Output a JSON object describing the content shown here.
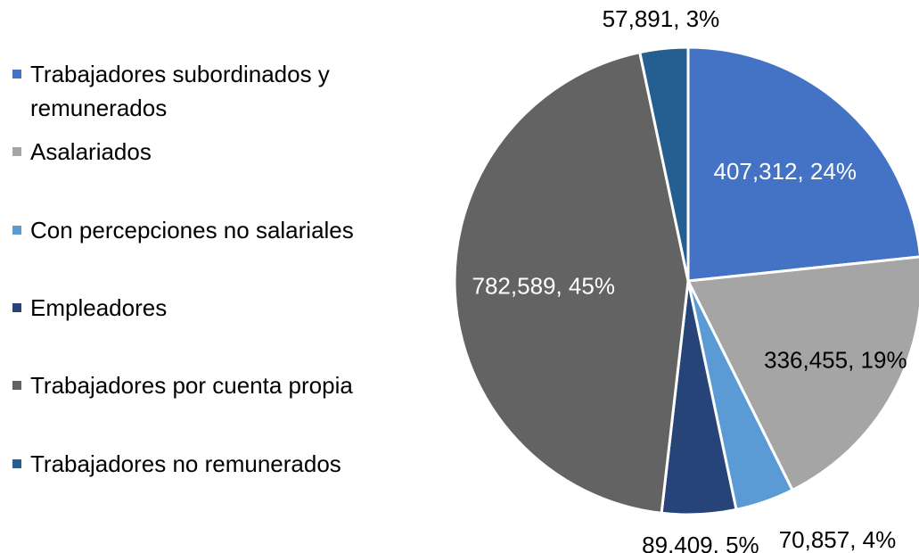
{
  "chart_data": {
    "type": "pie",
    "categories": [
      "Trabajadores subordinados y remunerados",
      "Asalariados",
      "Con percepciones no salariales",
      "Empleadores",
      "Trabajadores por cuenta propia",
      "Trabajadores no remunerados"
    ],
    "values": [
      407312,
      336455,
      70857,
      89409,
      782589,
      57891
    ],
    "value_labels": [
      "407,312, 24%",
      "336,455, 19%",
      "70,857, 4%",
      "89,409, 5%",
      "782,589, 45%",
      "57,891, 3%"
    ],
    "colors": [
      "#4472c4",
      "#a5a5a5",
      "#5b9bd5",
      "#264478",
      "#636363",
      "#255e91"
    ],
    "legend": "left"
  }
}
